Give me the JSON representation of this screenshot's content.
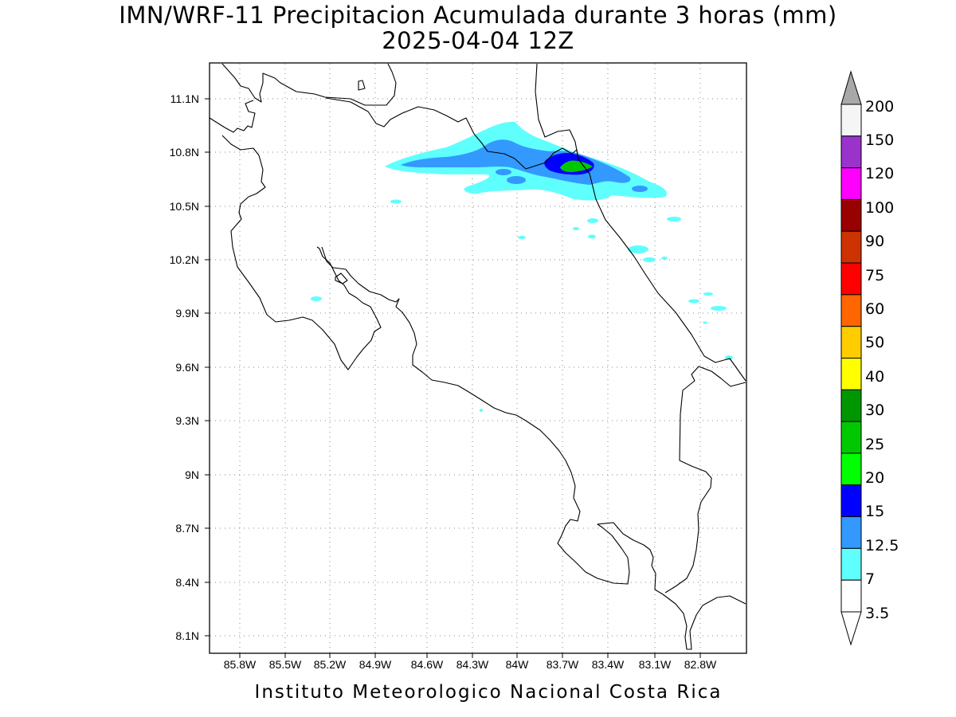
{
  "title_line1": "IMN/WRF-11 Precipitacion Acumulada durante 3 horas (mm)",
  "title_line2": "2025-04-04 12Z",
  "footer": "Instituto Meteorologico Nacional Costa Rica",
  "lon_ticks": [
    "85.8W",
    "85.5W",
    "85.2W",
    "84.9W",
    "84.6W",
    "84.3W",
    "84W",
    "83.7W",
    "83.4W",
    "83.1W",
    "82.8W"
  ],
  "lat_ticks": [
    "11.1N",
    "10.8N",
    "10.5N",
    "10.2N",
    "9.9N",
    "9.6N",
    "9.3N",
    "9N",
    "8.7N",
    "8.4N",
    "8.1N"
  ],
  "colorbar": {
    "labels": [
      "3.5",
      "7",
      "12.5",
      "15",
      "20",
      "25",
      "30",
      "40",
      "50",
      "60",
      "75",
      "90",
      "100",
      "120",
      "150",
      "200"
    ],
    "colors": [
      "#ffffff",
      "#5ffffd",
      "#3399ff",
      "#0000ff",
      "#00ff00",
      "#00c800",
      "#009600",
      "#ffff00",
      "#ffcc00",
      "#ff6600",
      "#ff0000",
      "#cc3300",
      "#990000",
      "#ff00ff",
      "#9933cc",
      "#f5f5f5"
    ],
    "over_color": "#a8a8a8",
    "under_color": "#ffffff"
  },
  "colors": {
    "light_cyan": "#5ffffd",
    "medium_blue": "#3399ff",
    "dark_blue": "#0000ff",
    "green": "#00c800"
  }
}
